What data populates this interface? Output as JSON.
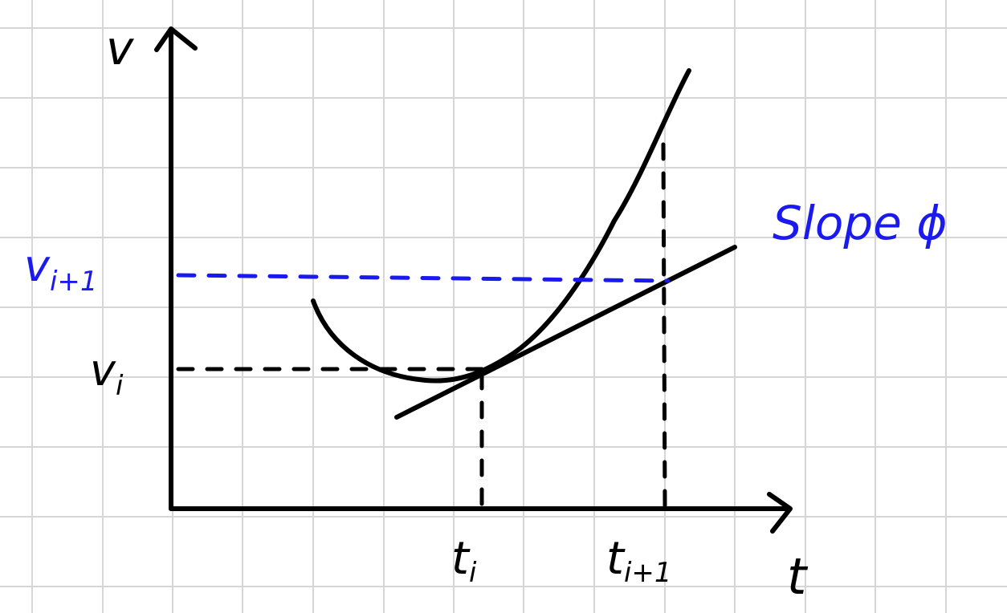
{
  "labels": {
    "v_axis": "v",
    "t_axis": "t",
    "v_i": "v",
    "v_i_sub": "i",
    "v_i1": "v",
    "v_i1_sub": "i+1",
    "t_i": "t",
    "t_i_sub": "i",
    "t_i1": "t",
    "t_i1_sub": "i+1",
    "slope": "Slope ϕ"
  },
  "colors": {
    "ink": "#000000",
    "blue": "#1a1aee",
    "grid": "#d6d6d6"
  }
}
